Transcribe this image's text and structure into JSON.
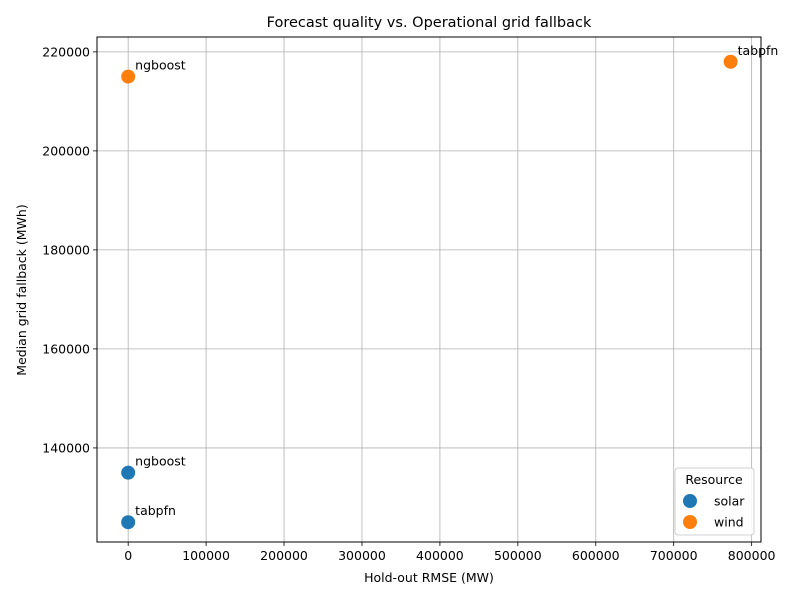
{
  "chart_data": {
    "type": "scatter",
    "title": "Forecast quality vs. Operational grid fallback",
    "xlabel": "Hold-out RMSE (MW)",
    "ylabel": "Median grid fallback (MWh)",
    "xlim": [
      -40000,
      812000
    ],
    "ylim": [
      121000,
      223000
    ],
    "xticks": [
      0,
      100000,
      200000,
      300000,
      400000,
      500000,
      600000,
      700000,
      800000
    ],
    "yticks": [
      140000,
      160000,
      180000,
      200000,
      220000
    ],
    "grid": true,
    "legend": {
      "title": "Resource",
      "placement": "lower-right"
    },
    "series": [
      {
        "name": "solar",
        "color": "#1f77b4",
        "points": [
          {
            "label": "ngboost",
            "x": 0,
            "y": 135000
          },
          {
            "label": "tabpfn",
            "x": 0,
            "y": 125000
          }
        ]
      },
      {
        "name": "wind",
        "color": "#ff7f0e",
        "points": [
          {
            "label": "ngboost",
            "x": 0,
            "y": 215000
          },
          {
            "label": "tabpfn",
            "x": 773000,
            "y": 218000
          }
        ]
      }
    ]
  }
}
